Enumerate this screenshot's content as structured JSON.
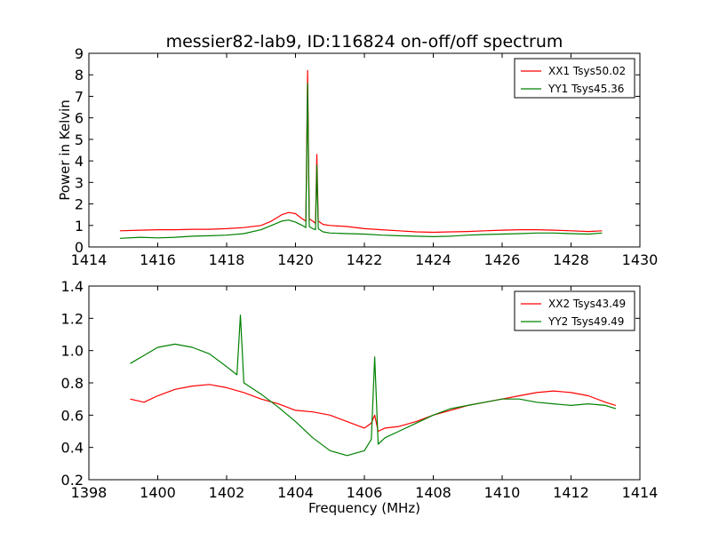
{
  "figure": {
    "title": "messier82-lab9, ID:116824 on-off/off spectrum"
  },
  "colors": {
    "red_series": "#ff0000",
    "green_series": "#008000",
    "background": "#ffffff",
    "axes": "#000000"
  },
  "chart_data": [
    {
      "type": "line",
      "title": "messier82-lab9, ID:116824 on-off/off spectrum",
      "xlabel": "",
      "ylabel": "Power in Kelvin",
      "xlim": [
        1414,
        1430
      ],
      "ylim": [
        0,
        9
      ],
      "xticks": [
        1414,
        1416,
        1418,
        1420,
        1422,
        1424,
        1426,
        1428,
        1430
      ],
      "yticks": [
        0,
        1,
        2,
        3,
        4,
        5,
        6,
        7,
        8,
        9
      ],
      "grid": false,
      "legend_position": "top-right",
      "series": [
        {
          "name": "XX1 Tsys50.02",
          "color": "#ff0000",
          "x": [
            1414.9,
            1415.5,
            1416.0,
            1416.5,
            1417.0,
            1417.5,
            1418.0,
            1418.5,
            1419.0,
            1419.3,
            1419.6,
            1419.8,
            1420.0,
            1420.2,
            1420.3,
            1420.35,
            1420.4,
            1420.5,
            1420.58,
            1420.62,
            1420.66,
            1420.8,
            1421.0,
            1421.5,
            1422.0,
            1422.5,
            1423.0,
            1423.5,
            1424.0,
            1424.5,
            1425.0,
            1425.5,
            1426.0,
            1426.5,
            1427.0,
            1427.5,
            1428.0,
            1428.5,
            1428.9
          ],
          "y": [
            0.75,
            0.78,
            0.8,
            0.8,
            0.82,
            0.82,
            0.85,
            0.9,
            1.0,
            1.2,
            1.5,
            1.6,
            1.55,
            1.3,
            1.2,
            8.2,
            1.3,
            1.2,
            1.1,
            4.3,
            1.2,
            1.05,
            1.0,
            0.95,
            0.85,
            0.8,
            0.75,
            0.7,
            0.68,
            0.7,
            0.72,
            0.75,
            0.78,
            0.8,
            0.8,
            0.78,
            0.75,
            0.72,
            0.75
          ]
        },
        {
          "name": "YY1 Tsys45.36",
          "color": "#008000",
          "x": [
            1414.9,
            1415.5,
            1416.0,
            1416.5,
            1417.0,
            1417.5,
            1418.0,
            1418.5,
            1419.0,
            1419.3,
            1419.6,
            1419.8,
            1420.0,
            1420.2,
            1420.3,
            1420.35,
            1420.4,
            1420.5,
            1420.58,
            1420.62,
            1420.66,
            1420.8,
            1421.0,
            1421.5,
            1422.0,
            1422.5,
            1423.0,
            1423.5,
            1424.0,
            1424.5,
            1425.0,
            1425.5,
            1426.0,
            1426.5,
            1427.0,
            1427.5,
            1428.0,
            1428.5,
            1428.9
          ],
          "y": [
            0.4,
            0.45,
            0.42,
            0.45,
            0.5,
            0.52,
            0.55,
            0.62,
            0.8,
            1.0,
            1.2,
            1.25,
            1.15,
            1.0,
            0.9,
            7.6,
            0.95,
            0.85,
            0.8,
            3.8,
            0.85,
            0.7,
            0.65,
            0.62,
            0.6,
            0.55,
            0.52,
            0.5,
            0.48,
            0.5,
            0.55,
            0.58,
            0.6,
            0.62,
            0.65,
            0.65,
            0.62,
            0.6,
            0.65
          ]
        }
      ]
    },
    {
      "type": "line",
      "title": "",
      "xlabel": "Frequency (MHz)",
      "ylabel": "",
      "xlim": [
        1398,
        1414
      ],
      "ylim": [
        0.2,
        1.4
      ],
      "xticks": [
        1398,
        1400,
        1402,
        1404,
        1406,
        1408,
        1410,
        1412,
        1414
      ],
      "yticks": [
        0.2,
        0.4,
        0.6,
        0.8,
        1.0,
        1.2,
        1.4
      ],
      "grid": false,
      "legend_position": "top-right",
      "series": [
        {
          "name": "XX2 Tsys43.49",
          "color": "#ff0000",
          "x": [
            1399.2,
            1399.6,
            1400.0,
            1400.5,
            1401.0,
            1401.5,
            1402.0,
            1402.5,
            1403.0,
            1403.5,
            1404.0,
            1404.5,
            1405.0,
            1405.5,
            1406.0,
            1406.2,
            1406.3,
            1406.4,
            1406.6,
            1407.0,
            1407.5,
            1408.0,
            1408.5,
            1409.0,
            1409.5,
            1410.0,
            1410.5,
            1411.0,
            1411.5,
            1412.0,
            1412.5,
            1413.0,
            1413.3
          ],
          "y": [
            0.7,
            0.68,
            0.72,
            0.76,
            0.78,
            0.79,
            0.77,
            0.74,
            0.7,
            0.67,
            0.63,
            0.62,
            0.6,
            0.56,
            0.52,
            0.55,
            0.6,
            0.5,
            0.52,
            0.53,
            0.56,
            0.6,
            0.63,
            0.66,
            0.68,
            0.7,
            0.72,
            0.74,
            0.75,
            0.74,
            0.72,
            0.68,
            0.66
          ]
        },
        {
          "name": "YY2 Tsys49.49",
          "color": "#008000",
          "x": [
            1399.2,
            1399.6,
            1400.0,
            1400.5,
            1401.0,
            1401.5,
            1402.0,
            1402.3,
            1402.4,
            1402.5,
            1403.0,
            1403.5,
            1404.0,
            1404.5,
            1405.0,
            1405.5,
            1406.0,
            1406.2,
            1406.3,
            1406.4,
            1406.6,
            1407.0,
            1407.5,
            1408.0,
            1408.5,
            1409.0,
            1409.5,
            1410.0,
            1410.5,
            1411.0,
            1411.5,
            1412.0,
            1412.5,
            1413.0,
            1413.3
          ],
          "y": [
            0.92,
            0.97,
            1.02,
            1.04,
            1.02,
            0.98,
            0.9,
            0.85,
            1.22,
            0.8,
            0.73,
            0.65,
            0.56,
            0.46,
            0.38,
            0.35,
            0.38,
            0.45,
            0.96,
            0.42,
            0.46,
            0.5,
            0.55,
            0.6,
            0.64,
            0.66,
            0.68,
            0.7,
            0.7,
            0.68,
            0.67,
            0.66,
            0.67,
            0.66,
            0.64
          ]
        }
      ]
    }
  ]
}
